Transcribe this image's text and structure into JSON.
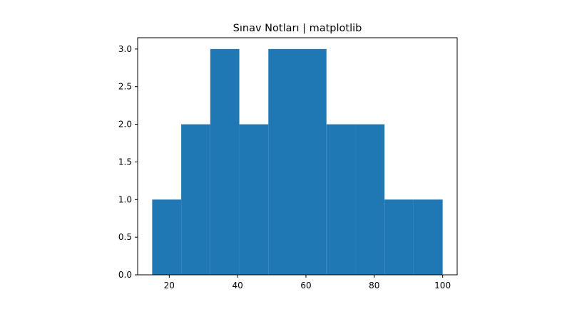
{
  "chart_data": {
    "type": "bar",
    "title": "Sınav Notları | matplotlib",
    "xlabel": "",
    "ylabel": "",
    "bins": [
      {
        "x0": 15.0,
        "x1": 23.5,
        "count": 1
      },
      {
        "x0": 23.5,
        "x1": 32.0,
        "count": 2
      },
      {
        "x0": 32.0,
        "x1": 40.5,
        "count": 3
      },
      {
        "x0": 40.5,
        "x1": 49.0,
        "count": 2
      },
      {
        "x0": 49.0,
        "x1": 57.5,
        "count": 3
      },
      {
        "x0": 57.5,
        "x1": 66.0,
        "count": 3
      },
      {
        "x0": 66.0,
        "x1": 74.5,
        "count": 2
      },
      {
        "x0": 74.5,
        "x1": 83.0,
        "count": 2
      },
      {
        "x0": 83.0,
        "x1": 91.5,
        "count": 1
      },
      {
        "x0": 91.5,
        "x1": 100.0,
        "count": 1
      }
    ],
    "xlim": [
      10.75,
      104.25
    ],
    "ylim": [
      0,
      3.15
    ],
    "xticks": [
      20,
      40,
      60,
      80,
      100
    ],
    "xtick_labels": [
      "20",
      "40",
      "60",
      "80",
      "100"
    ],
    "yticks": [
      0.0,
      0.5,
      1.0,
      1.5,
      2.0,
      2.5,
      3.0
    ],
    "ytick_labels": [
      "0.0",
      "0.5",
      "1.0",
      "1.5",
      "2.0",
      "2.5",
      "3.0"
    ],
    "bar_color": "#1f77b4",
    "grid": false,
    "legend": "none"
  }
}
